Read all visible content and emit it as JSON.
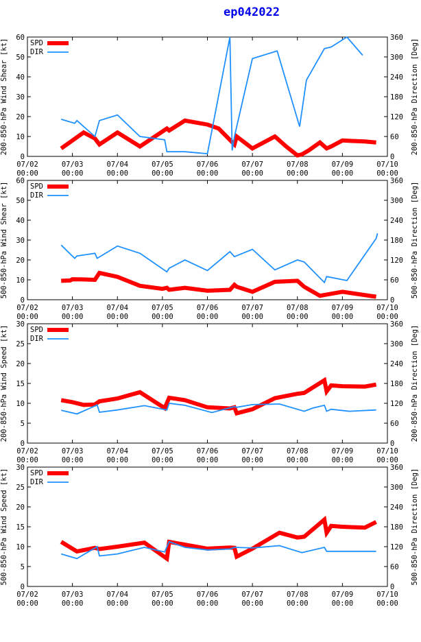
{
  "title": "ep042022",
  "colors": {
    "spd": "#ff0000",
    "dir": "#1e90ff",
    "axis": "#000000"
  },
  "x_ticks": [
    "07/02\n00:00",
    "07/03\n00:00",
    "07/04\n00:00",
    "07/05\n00:00",
    "07/06\n00:00",
    "07/07\n00:00",
    "07/08\n00:00",
    "07/09\n00:00",
    "07/10\n00:00"
  ],
  "chart_data": [
    {
      "type": "line",
      "ylabel_left": "200-850-hPa Wind Shear [kt]",
      "ylabel_right": "200-850-hPa Direction [Deg]",
      "ylim": [
        0,
        60
      ],
      "yticks": [
        0,
        10,
        20,
        30,
        40,
        50,
        60
      ],
      "y2lim": [
        0,
        360
      ],
      "y2ticks": [
        0,
        60,
        120,
        180,
        240,
        300,
        360
      ],
      "xlim": [
        0,
        8
      ],
      "legend": [
        "SPD",
        "DIR"
      ],
      "series": [
        {
          "name": "SPD",
          "axis": "left",
          "x": [
            0.75,
            1.0,
            1.25,
            1.5,
            1.6,
            2.0,
            2.5,
            3.1,
            3.15,
            3.5,
            3.75,
            4.0,
            4.25,
            4.6,
            4.65,
            5.0,
            5.25,
            5.5,
            5.75,
            6.0,
            6.1,
            6.25,
            6.5,
            6.65,
            6.75,
            7.0,
            7.5,
            7.75
          ],
          "y": [
            4,
            8,
            12,
            9,
            6,
            12,
            5,
            14,
            13,
            18,
            17,
            16,
            14,
            6,
            10,
            4,
            7,
            10,
            5,
            0.5,
            1,
            3,
            7,
            4,
            5,
            8,
            7.5,
            7
          ]
        },
        {
          "name": "DIR",
          "axis": "right",
          "x": [
            0.75,
            1.05,
            1.1,
            1.5,
            1.6,
            2.0,
            2.5,
            3.05,
            3.1,
            3.5,
            4.0,
            4.5,
            4.55,
            4.6,
            5.0,
            5.55,
            6.05,
            6.2,
            6.6,
            6.75,
            7.1,
            7.45
          ],
          "y": [
            112,
            100,
            108,
            60,
            108,
            125,
            60,
            50,
            14,
            14,
            8,
            360,
            18,
            60,
            295,
            318,
            90,
            230,
            325,
            330,
            360,
            305
          ]
        }
      ]
    },
    {
      "type": "line",
      "ylabel_left": "500-850-hPa Wind Shear [kt]",
      "ylabel_right": "500-850-hPa Direction [Deg]",
      "ylim": [
        0,
        60
      ],
      "yticks": [
        0,
        10,
        20,
        30,
        40,
        50,
        60
      ],
      "y2lim": [
        0,
        360
      ],
      "y2ticks": [
        0,
        60,
        120,
        180,
        240,
        300,
        360
      ],
      "xlim": [
        0,
        8
      ],
      "legend": [
        "SPD",
        "DIR"
      ],
      "series": [
        {
          "name": "SPD",
          "axis": "left",
          "x": [
            0.75,
            0.95,
            1.0,
            1.25,
            1.5,
            1.6,
            2.0,
            2.5,
            3.0,
            3.1,
            3.15,
            3.5,
            4.0,
            4.5,
            4.6,
            4.65,
            5.0,
            5.5,
            6.0,
            6.15,
            6.5,
            6.75,
            7.0,
            7.75
          ],
          "y": [
            9.5,
            9.7,
            10.3,
            10.2,
            10,
            13.5,
            11.5,
            7,
            5.5,
            6,
            5,
            6,
            4.5,
            5,
            7.5,
            6.5,
            4,
            9,
            9.5,
            6.5,
            2,
            3,
            4,
            1.5
          ]
        },
        {
          "name": "DIR",
          "axis": "right",
          "x": [
            0.75,
            1.05,
            1.1,
            1.5,
            1.55,
            2.0,
            2.5,
            3.1,
            3.15,
            3.5,
            4.0,
            4.5,
            4.6,
            5.0,
            5.5,
            6.0,
            6.15,
            6.6,
            6.65,
            7.1,
            7.75,
            7.78
          ],
          "y": [
            165,
            125,
            132,
            140,
            125,
            162,
            140,
            84,
            95,
            120,
            88,
            145,
            130,
            152,
            90,
            120,
            114,
            52,
            70,
            58,
            185,
            200
          ]
        }
      ]
    },
    {
      "type": "line",
      "ylabel_left": "200-850-hPa Wind Speed [kt]",
      "ylabel_right": "200-850-hPa Direction [Deg]",
      "ylim": [
        0,
        30
      ],
      "yticks": [
        0,
        5,
        10,
        15,
        20,
        25,
        30
      ],
      "y2lim": [
        0,
        360
      ],
      "y2ticks": [
        0,
        60,
        120,
        180,
        240,
        300,
        360
      ],
      "xlim": [
        0,
        8
      ],
      "legend": [
        "SPD",
        "DIR"
      ],
      "series": [
        {
          "name": "SPD",
          "axis": "left",
          "x": [
            0.75,
            1.0,
            1.25,
            1.5,
            1.6,
            2.0,
            2.5,
            3.05,
            3.15,
            3.5,
            4.0,
            4.5,
            4.6,
            4.65,
            5.0,
            5.5,
            6.0,
            6.15,
            6.6,
            6.65,
            6.75,
            7.0,
            7.5,
            7.75
          ],
          "y": [
            10.8,
            10.3,
            9.6,
            9.7,
            10.5,
            11.2,
            12.8,
            8.8,
            11.4,
            10.8,
            9,
            8.7,
            9,
            7.5,
            8.5,
            11.3,
            12.4,
            12.6,
            15.8,
            13,
            14.5,
            14.3,
            14.2,
            14.7
          ]
        },
        {
          "name": "DIR",
          "axis": "right",
          "x": [
            0.75,
            1.1,
            1.55,
            1.6,
            2.0,
            2.6,
            3.1,
            3.15,
            3.5,
            4.1,
            4.6,
            4.65,
            5.0,
            5.6,
            6.15,
            6.35,
            6.6,
            6.65,
            6.75,
            7.15,
            7.75
          ],
          "y": [
            99,
            88,
            115,
            93,
            100,
            113,
            100,
            120,
            114,
            92,
            110,
            108,
            116,
            118,
            96,
            106,
            114,
            96,
            102,
            96,
            100
          ]
        }
      ]
    },
    {
      "type": "line",
      "ylabel_left": "500-850-hPa Wind Speed [kt]",
      "ylabel_right": "500-850-hPa Direction [Deg]",
      "ylim": [
        0,
        30
      ],
      "yticks": [
        0,
        5,
        10,
        15,
        20,
        25,
        30
      ],
      "y2lim": [
        0,
        360
      ],
      "y2ticks": [
        0,
        60,
        120,
        180,
        240,
        300,
        360
      ],
      "xlim": [
        0,
        8
      ],
      "legend": [
        "SPD",
        "DIR"
      ],
      "series": [
        {
          "name": "SPD",
          "axis": "left",
          "x": [
            0.75,
            1.1,
            1.5,
            1.6,
            2.0,
            2.6,
            3.1,
            3.15,
            3.5,
            4.0,
            4.5,
            4.6,
            4.65,
            5.0,
            5.6,
            6.0,
            6.15,
            6.6,
            6.65,
            6.75,
            7.0,
            7.5,
            7.75
          ],
          "y": [
            11.2,
            8.8,
            9.7,
            9.4,
            10,
            11,
            7,
            11.2,
            10.5,
            9.5,
            9.8,
            9.7,
            7.5,
            9.5,
            13.5,
            12.3,
            12.5,
            16.8,
            13.5,
            15.2,
            15,
            14.8,
            16.2
          ]
        },
        {
          "name": "DIR",
          "axis": "right",
          "x": [
            0.75,
            1.1,
            1.55,
            1.6,
            2.0,
            2.6,
            3.05,
            3.15,
            3.5,
            4.0,
            4.5,
            4.6,
            5.0,
            5.6,
            6.1,
            6.6,
            6.65,
            7.0,
            7.75
          ],
          "y": [
            98,
            84,
            120,
            92,
            98,
            118,
            104,
            135,
            118,
            110,
            113,
            118,
            116,
            123,
            102,
            118,
            106,
            106,
            106
          ]
        }
      ]
    }
  ]
}
